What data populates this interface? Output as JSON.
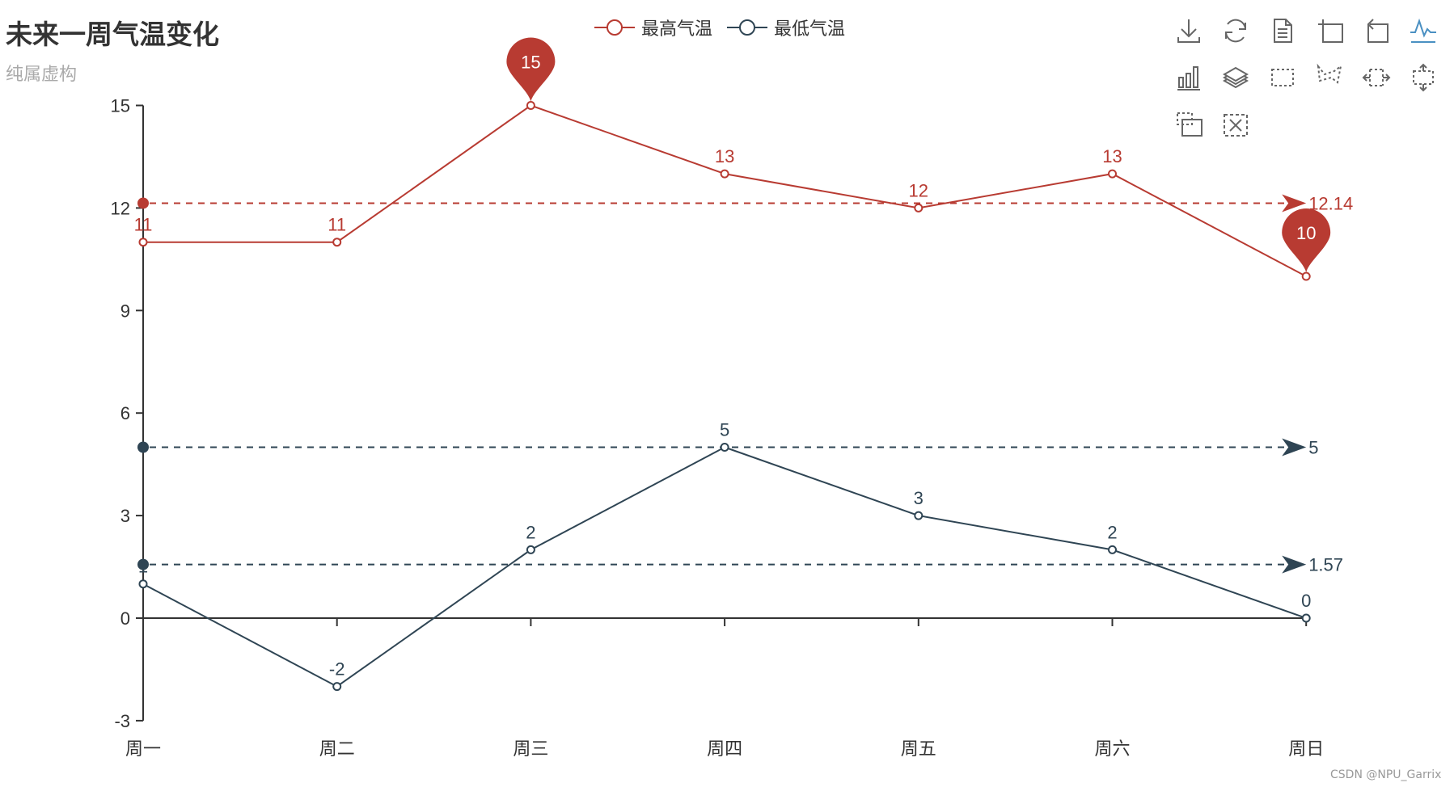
{
  "title": "未来一周气温变化",
  "subtitle": "纯属虚构",
  "legend": [
    {
      "label": "最高气温",
      "color": "#b83b32"
    },
    {
      "label": "最低气温",
      "color": "#2f4554"
    }
  ],
  "toolbox": [
    {
      "name": "save-as-image-icon",
      "active": false
    },
    {
      "name": "restore-icon",
      "active": false
    },
    {
      "name": "data-view-icon",
      "active": false
    },
    {
      "name": "data-zoom-icon",
      "active": false
    },
    {
      "name": "data-zoom-reset-icon",
      "active": false
    },
    {
      "name": "line-chart-icon",
      "active": true
    },
    {
      "name": "bar-chart-icon",
      "active": false
    },
    {
      "name": "stack-icon",
      "active": false
    },
    {
      "name": "rect-select-icon",
      "active": false
    },
    {
      "name": "polygon-select-icon",
      "active": false
    },
    {
      "name": "line-x-select-icon",
      "active": false
    },
    {
      "name": "line-y-select-icon",
      "active": false
    },
    {
      "name": "keep-select-icon",
      "active": false
    },
    {
      "name": "clear-select-icon",
      "active": false
    }
  ],
  "watermark": "CSDN @NPU_Garrix",
  "chart_data": {
    "type": "line",
    "title": "未来一周气温变化",
    "subtitle": "纯属虚构",
    "xlabel": "",
    "ylabel": "",
    "categories": [
      "周一",
      "周二",
      "周三",
      "周四",
      "周五",
      "周六",
      "周日"
    ],
    "yticks": [
      -3,
      0,
      3,
      6,
      9,
      12,
      15
    ],
    "ylim": [
      -3,
      15
    ],
    "grid": false,
    "legend_position": "top-center",
    "series": [
      {
        "name": "最高气温",
        "color": "#b83b32",
        "values": [
          11,
          11,
          15,
          13,
          12,
          13,
          10
        ],
        "markPoints": [
          {
            "type": "max",
            "index": 2,
            "value": 15
          },
          {
            "type": "min",
            "index": 6,
            "value": 10
          }
        ],
        "markLines": [
          {
            "type": "average",
            "value": 12.14,
            "label": "12.14"
          }
        ]
      },
      {
        "name": "最低气温",
        "color": "#2f4554",
        "values": [
          1,
          -2,
          2,
          5,
          3,
          2,
          0
        ],
        "markPoints": [],
        "markLines": [
          {
            "type": "max",
            "value": 5,
            "label": "5"
          },
          {
            "type": "average",
            "value": 1.57,
            "label": "1.57"
          }
        ]
      }
    ]
  }
}
